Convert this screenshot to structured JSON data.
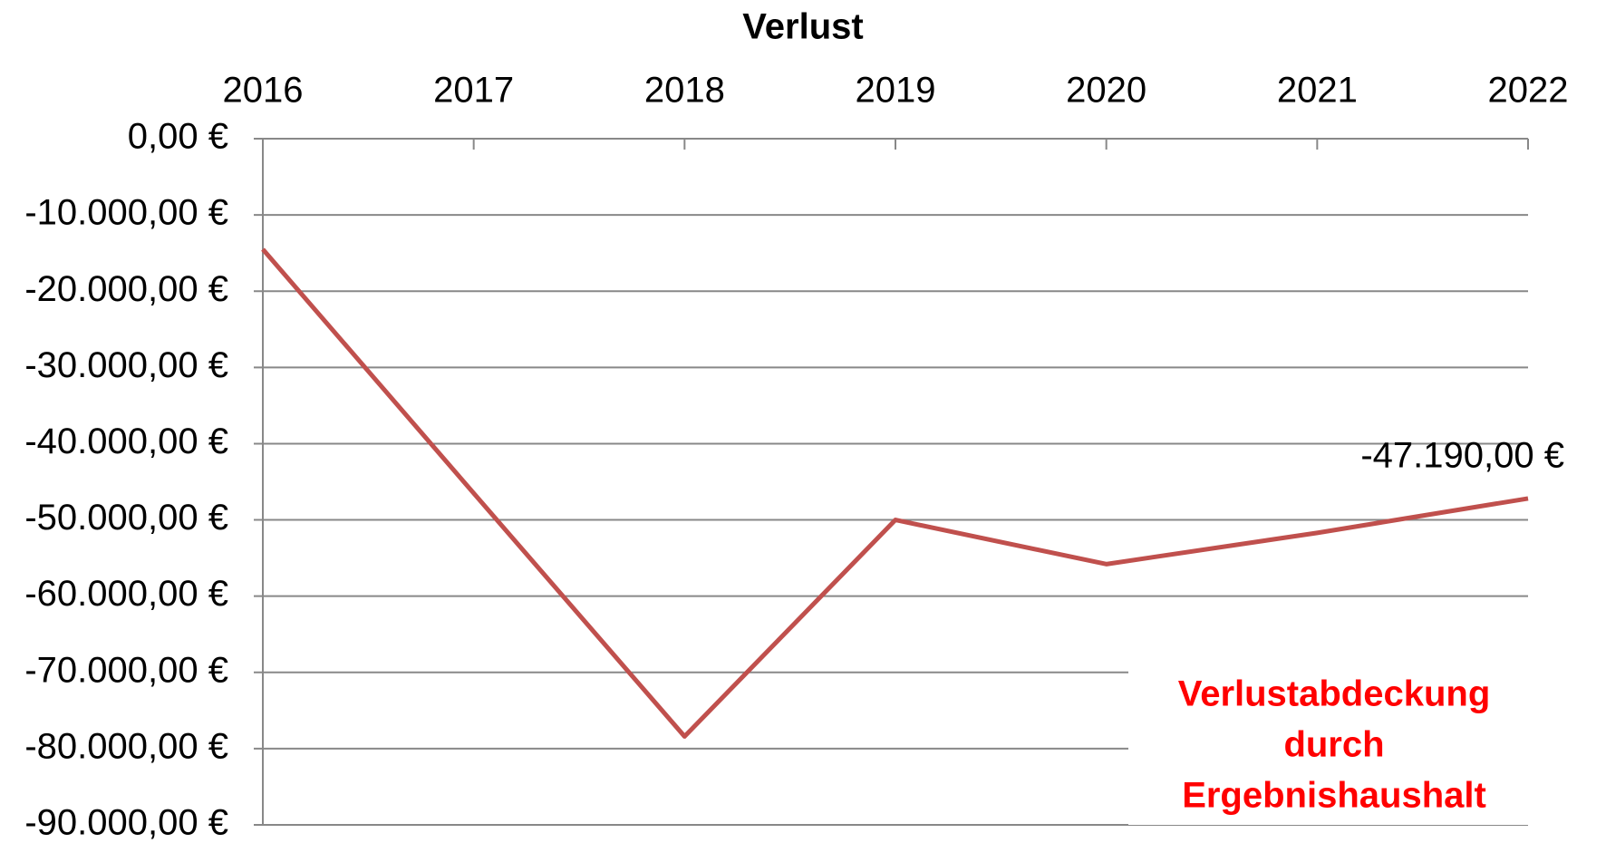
{
  "chart_data": {
    "type": "line",
    "title": "Verlust",
    "categories": [
      "2016",
      "2017",
      "2018",
      "2019",
      "2020",
      "2021",
      "2022"
    ],
    "series": [
      {
        "name": "Verlust",
        "color": "#c0504d",
        "values": [
          -14500,
          -46500,
          -78400,
          -50000,
          -55800,
          -51700,
          -47190
        ],
        "value_labels": [
          null,
          null,
          null,
          null,
          null,
          null,
          "-47.190,00 €"
        ]
      }
    ],
    "ylim": [
      -90000,
      0
    ],
    "yticks": [
      {
        "value": 0,
        "label": "0,00 €"
      },
      {
        "value": -10000,
        "label": "-10.000,00 €"
      },
      {
        "value": -20000,
        "label": "-20.000,00 €"
      },
      {
        "value": -30000,
        "label": "-30.000,00 €"
      },
      {
        "value": -40000,
        "label": "-40.000,00 €"
      },
      {
        "value": -50000,
        "label": "-50.000,00 €"
      },
      {
        "value": -60000,
        "label": "-60.000,00 €"
      },
      {
        "value": -70000,
        "label": "-70.000,00 €"
      },
      {
        "value": -80000,
        "label": "-80.000,00 €"
      },
      {
        "value": -90000,
        "label": "-90.000,00 €"
      }
    ],
    "grid": true,
    "annotation": [
      "Verlustabdeckung",
      "durch",
      "Ergebnishaushalt"
    ],
    "annotation_color": "#ff0000"
  }
}
